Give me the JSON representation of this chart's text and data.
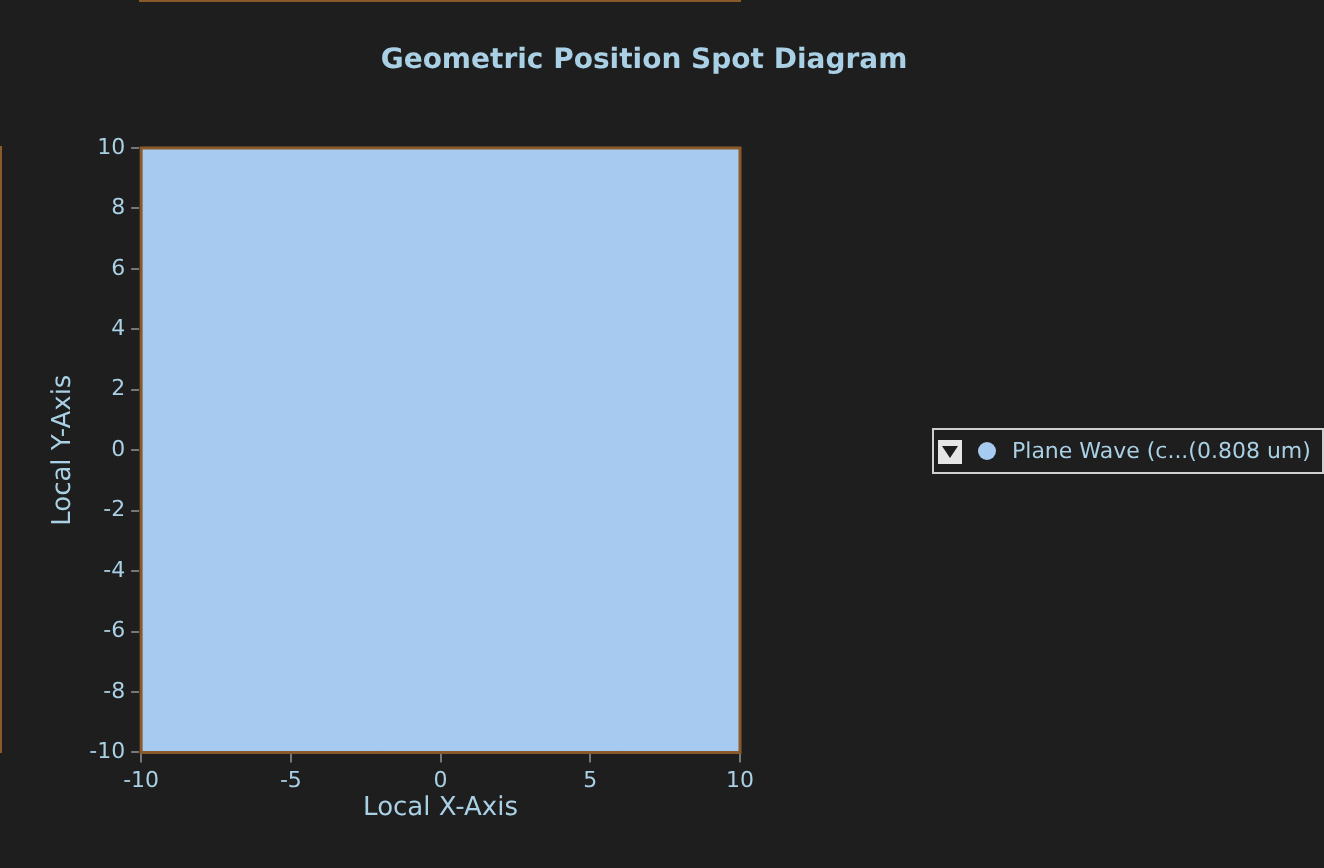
{
  "chart_data": {
    "type": "scatter",
    "title": "Geometric Position Spot Diagram",
    "xlabel": "Local X-Axis",
    "ylabel": "Local Y-Axis",
    "xlim": [
      -10,
      10
    ],
    "ylim": [
      -10,
      10
    ],
    "xticks": [
      -10,
      -5,
      0,
      5,
      10
    ],
    "yticks": [
      -10,
      -8,
      -6,
      -4,
      -2,
      0,
      2,
      4,
      6,
      8,
      10
    ],
    "grid": false,
    "legend": "right",
    "marker": "circle",
    "series": [
      {
        "name": "Plane Wave (c...(0.808 um)",
        "color": "#a6caf0",
        "x": [
          -9,
          -7,
          -5,
          -3,
          -1,
          1,
          3,
          5,
          7,
          9,
          -9,
          -7,
          -5,
          -3,
          -1,
          1,
          3,
          5,
          7,
          9,
          -9,
          -7,
          -5,
          -3,
          -1,
          1,
          3,
          5,
          7,
          9,
          -9,
          -7,
          -5,
          -3,
          -1,
          1,
          3,
          5,
          7,
          9,
          -9,
          -7,
          -5,
          -3,
          -1,
          1,
          3,
          5,
          7,
          9,
          -9,
          -7,
          -5,
          -3,
          -1,
          1,
          3,
          5,
          7,
          9,
          -9,
          -7,
          -5,
          -3,
          -1,
          1,
          3,
          5,
          7,
          9,
          -9,
          -7,
          -5,
          -3,
          -1,
          1,
          3,
          5,
          7,
          9,
          -9,
          -7,
          -5,
          -3,
          -1,
          1,
          3,
          5,
          7,
          9,
          -9,
          -7,
          -5,
          -3,
          -1,
          1,
          3,
          5,
          7,
          9
        ],
        "values": [
          9,
          9,
          9,
          9,
          9,
          9,
          9,
          9,
          9,
          9,
          7,
          7,
          7,
          7,
          7,
          7,
          7,
          7,
          7,
          7,
          5,
          5,
          5,
          5,
          5,
          5,
          5,
          5,
          5,
          5,
          3,
          3,
          3,
          3,
          3,
          3,
          3,
          3,
          3,
          3,
          1,
          1,
          1,
          1,
          1,
          1,
          1,
          1,
          1,
          1,
          -1,
          -1,
          -1,
          -1,
          -1,
          -1,
          -1,
          -1,
          -1,
          -1,
          -3,
          -3,
          -3,
          -3,
          -3,
          -3,
          -3,
          -3,
          -3,
          -3,
          -5,
          -5,
          -5,
          -5,
          -5,
          -5,
          -5,
          -5,
          -5,
          -5,
          -7,
          -7,
          -7,
          -7,
          -7,
          -7,
          -7,
          -7,
          -7,
          -7,
          -9,
          -9,
          -9,
          -9,
          -9,
          -9,
          -9,
          -9,
          -9,
          -9
        ]
      }
    ]
  }
}
